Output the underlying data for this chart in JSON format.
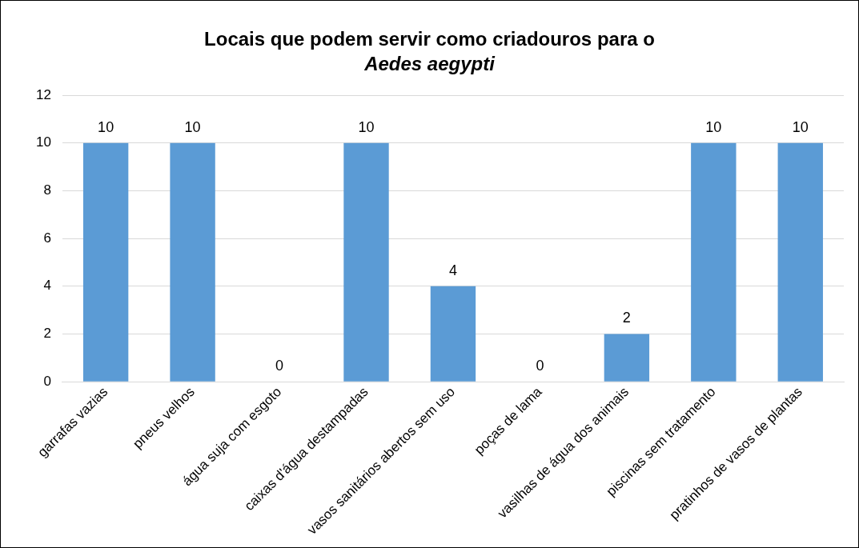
{
  "chart_data": {
    "type": "bar",
    "title": "Locais que podem servir como criadouros para o\nAedes aegypti",
    "categories": [
      "garrafas vazias",
      "pneus velhos",
      "água suja com esgoto",
      "caixas d'água destampadas",
      "vasos sanitários abertos sem uso",
      "poças de lama",
      "vasilhas de água dos animais",
      "piscinas sem tratamento",
      "pratinhos de vasos de plantas"
    ],
    "values": [
      10,
      10,
      0,
      10,
      4,
      0,
      2,
      10,
      10
    ],
    "color": "#5b9bd5",
    "ylim": [
      0,
      12
    ],
    "yticks": [
      0,
      2,
      4,
      6,
      8,
      10,
      12
    ],
    "grid": "y",
    "data_labels": true,
    "legend": false
  }
}
